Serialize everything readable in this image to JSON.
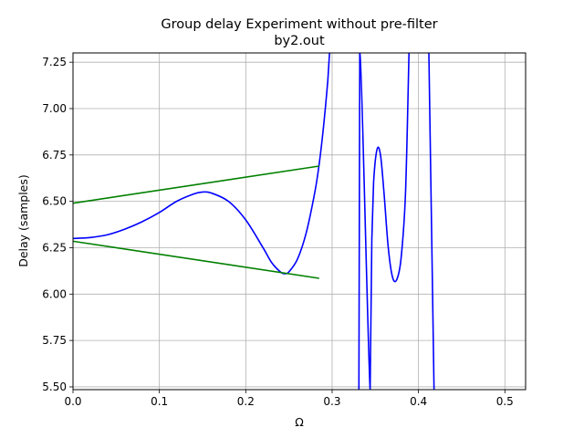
{
  "chart_data": {
    "type": "line",
    "title": "Group delay Experiment without pre-filter",
    "subtitle": "by2.out",
    "xlabel": "Ω",
    "ylabel": "Delay (samples)",
    "ylabel_color": "#0000ff",
    "xlim": [
      0,
      0.524
    ],
    "ylim": [
      5.485,
      7.3
    ],
    "grid": true,
    "xticks": [
      0.0,
      0.1,
      0.2,
      0.3,
      0.4,
      0.5
    ],
    "xtick_labels": [
      "0.0",
      "0.1",
      "0.2",
      "0.3",
      "0.4",
      "0.5"
    ],
    "yticks": [
      5.5,
      5.75,
      6.0,
      6.25,
      6.5,
      6.75,
      7.0,
      7.25
    ],
    "ytick_labels": [
      "5.50",
      "5.75",
      "6.00",
      "6.25",
      "6.50",
      "6.75",
      "7.00",
      "7.25"
    ],
    "series": [
      {
        "color": "#0000ff",
        "x": [
          0.0,
          0.02,
          0.04,
          0.06,
          0.08,
          0.1,
          0.12,
          0.14,
          0.15,
          0.16,
          0.18,
          0.2,
          0.22,
          0.23,
          0.24,
          0.245,
          0.25,
          0.26,
          0.27,
          0.28,
          0.285,
          0.29,
          0.295,
          0.297,
          0.32,
          0.331,
          0.332,
          0.344,
          0.346,
          0.348,
          0.352,
          0.356,
          0.36,
          0.365,
          0.37,
          0.375,
          0.38,
          0.385,
          0.389,
          0.4,
          0.412,
          0.413,
          0.418
        ],
        "y": [
          6.3,
          6.305,
          6.32,
          6.35,
          6.39,
          6.44,
          6.5,
          6.54,
          6.55,
          6.545,
          6.5,
          6.4,
          6.25,
          6.17,
          6.12,
          6.11,
          6.12,
          6.19,
          6.33,
          6.55,
          6.7,
          6.9,
          7.15,
          7.3,
          null,
          5.485,
          7.3,
          5.485,
          6.3,
          6.6,
          6.78,
          6.75,
          6.55,
          6.25,
          6.09,
          6.08,
          6.2,
          6.55,
          7.3,
          null,
          7.3,
          7.0,
          5.485
        ]
      },
      {
        "color": "#008000",
        "x": [
          0.0,
          0.285
        ],
        "y": [
          6.49,
          6.69
        ]
      },
      {
        "color": "#008000",
        "x": [
          0.0,
          0.285
        ],
        "y": [
          6.285,
          6.085
        ]
      }
    ]
  }
}
